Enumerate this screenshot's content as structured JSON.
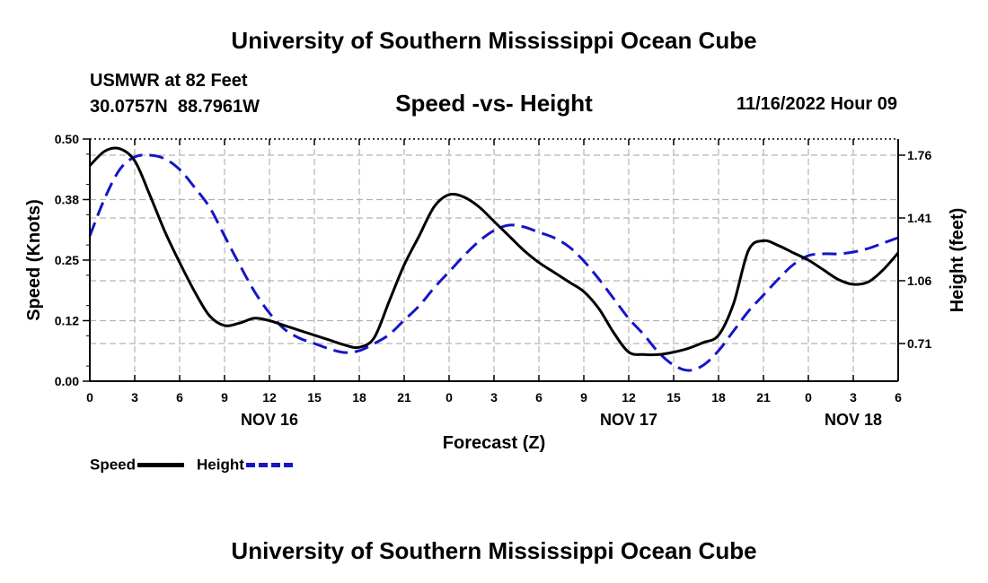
{
  "header": {
    "title": "University of Southern Mississippi Ocean Cube",
    "station_name": "USMWR at 82 Feet",
    "station_coords": "30.0757N  88.7961W",
    "subtitle": "Speed -vs- Height",
    "datetime": "11/16/2022 Hour 09"
  },
  "footer": {
    "title": "University of Southern Mississippi Ocean Cube"
  },
  "legend": {
    "speed_label": "Speed",
    "height_label": "Height"
  },
  "chart_data": {
    "type": "line",
    "title": "Speed -vs- Height",
    "xlabel": "Forecast (Z)",
    "ylabel_left": "Speed (Knots)",
    "ylabel_right": "Height (feet)",
    "x_unit": "hours from 00Z Nov 16",
    "xlim": [
      0,
      54
    ],
    "x_ticks": [
      0,
      3,
      6,
      9,
      12,
      15,
      18,
      21,
      24,
      27,
      30,
      33,
      36,
      39,
      42,
      45,
      48,
      51,
      54
    ],
    "x_tick_labels": [
      "0",
      "3",
      "6",
      "9",
      "12",
      "15",
      "18",
      "21",
      "0",
      "3",
      "6",
      "9",
      "12",
      "15",
      "18",
      "21",
      "0",
      "3",
      "6"
    ],
    "date_labels": [
      {
        "x": 12,
        "label": "NOV 16"
      },
      {
        "x": 36,
        "label": "NOV 17"
      },
      {
        "x": 51,
        "label": "NOV 18"
      }
    ],
    "ylim_left": [
      0,
      0.5
    ],
    "y_ticks_left": [
      0,
      0.125,
      0.25,
      0.375,
      0.5
    ],
    "y_tick_labels_left": [
      "0.00",
      "0.12",
      "0.25",
      "0.38",
      "0.50"
    ],
    "ylim_right": [
      0.5,
      1.85
    ],
    "y_ticks_right": [
      0.71,
      1.06,
      1.41,
      1.76
    ],
    "y_tick_labels_right": [
      "0.71",
      "1.06",
      "1.41",
      "1.76"
    ],
    "grid": true,
    "series": [
      {
        "name": "Speed",
        "axis": "left",
        "color": "#000000",
        "style": "solid",
        "x": [
          0,
          1,
          2,
          3,
          4,
          5,
          6,
          7,
          8,
          9,
          10,
          11,
          12,
          13,
          14,
          15,
          16,
          17,
          18,
          19,
          20,
          21,
          22,
          23,
          24,
          25,
          26,
          27,
          28,
          29,
          30,
          31,
          32,
          33,
          34,
          35,
          36,
          37,
          38,
          39,
          40,
          41,
          42,
          43,
          44,
          45,
          46,
          47,
          48,
          49,
          50,
          51,
          52,
          53,
          54
        ],
        "values": [
          0.445,
          0.475,
          0.48,
          0.455,
          0.385,
          0.31,
          0.245,
          0.185,
          0.135,
          0.115,
          0.12,
          0.13,
          0.125,
          0.115,
          0.105,
          0.095,
          0.085,
          0.075,
          0.07,
          0.09,
          0.165,
          0.24,
          0.3,
          0.36,
          0.385,
          0.38,
          0.36,
          0.33,
          0.3,
          0.27,
          0.245,
          0.225,
          0.205,
          0.185,
          0.15,
          0.1,
          0.06,
          0.055,
          0.055,
          0.06,
          0.068,
          0.08,
          0.095,
          0.16,
          0.27,
          0.29,
          0.28,
          0.265,
          0.25,
          0.23,
          0.21,
          0.2,
          0.205,
          0.23,
          0.265
        ]
      },
      {
        "name": "Height",
        "axis": "right",
        "color": "#1515c8",
        "style": "dashed",
        "x": [
          0,
          1,
          2,
          3,
          4,
          5,
          6,
          7,
          8,
          9,
          10,
          11,
          12,
          13,
          14,
          15,
          16,
          17,
          18,
          19,
          20,
          21,
          22,
          23,
          24,
          25,
          26,
          27,
          28,
          29,
          30,
          31,
          32,
          33,
          34,
          35,
          36,
          37,
          38,
          39,
          40,
          41,
          42,
          43,
          44,
          45,
          46,
          47,
          48,
          49,
          50,
          51,
          52,
          53,
          54
        ],
        "values": [
          1.31,
          1.52,
          1.68,
          1.75,
          1.76,
          1.74,
          1.68,
          1.58,
          1.47,
          1.31,
          1.15,
          1.0,
          0.88,
          0.79,
          0.74,
          0.71,
          0.68,
          0.66,
          0.67,
          0.71,
          0.76,
          0.84,
          0.92,
          1.02,
          1.11,
          1.2,
          1.28,
          1.34,
          1.37,
          1.36,
          1.33,
          1.3,
          1.25,
          1.17,
          1.07,
          0.96,
          0.85,
          0.76,
          0.66,
          0.59,
          0.56,
          0.59,
          0.67,
          0.78,
          0.89,
          0.98,
          1.07,
          1.15,
          1.2,
          1.21,
          1.21,
          1.22,
          1.24,
          1.27,
          1.3
        ]
      }
    ]
  }
}
